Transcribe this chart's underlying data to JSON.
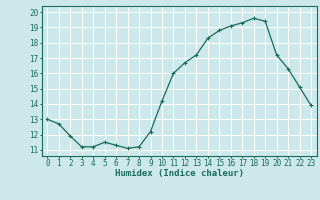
{
  "xlabel": "Humidex (Indice chaleur)",
  "ylabel": "",
  "x": [
    0,
    1,
    2,
    3,
    4,
    5,
    6,
    7,
    8,
    9,
    10,
    11,
    12,
    13,
    14,
    15,
    16,
    17,
    18,
    19,
    20,
    21,
    22,
    23
  ],
  "y": [
    13.0,
    12.7,
    11.9,
    11.2,
    11.2,
    11.5,
    11.3,
    11.1,
    11.2,
    12.2,
    14.2,
    16.0,
    16.7,
    17.2,
    18.3,
    18.8,
    19.1,
    19.3,
    19.6,
    19.4,
    17.2,
    16.3,
    15.1,
    13.9
  ],
  "line_color": "#1a6b5a",
  "marker": "+",
  "marker_size": 3,
  "bg_color": "#cce8ea",
  "grid_color": "#ffffff",
  "axis_color": "#1a6b5a",
  "tick_color": "#1a6b5a",
  "ylim": [
    11,
    20
  ],
  "xlim": [
    -0.5,
    23.5
  ],
  "yticks": [
    11,
    12,
    13,
    14,
    15,
    16,
    17,
    18,
    19,
    20
  ],
  "xticks": [
    0,
    1,
    2,
    3,
    4,
    5,
    6,
    7,
    8,
    9,
    10,
    11,
    12,
    13,
    14,
    15,
    16,
    17,
    18,
    19,
    20,
    21,
    22,
    23
  ],
  "xlabel_fontsize": 6.5,
  "tick_fontsize": 5.5
}
